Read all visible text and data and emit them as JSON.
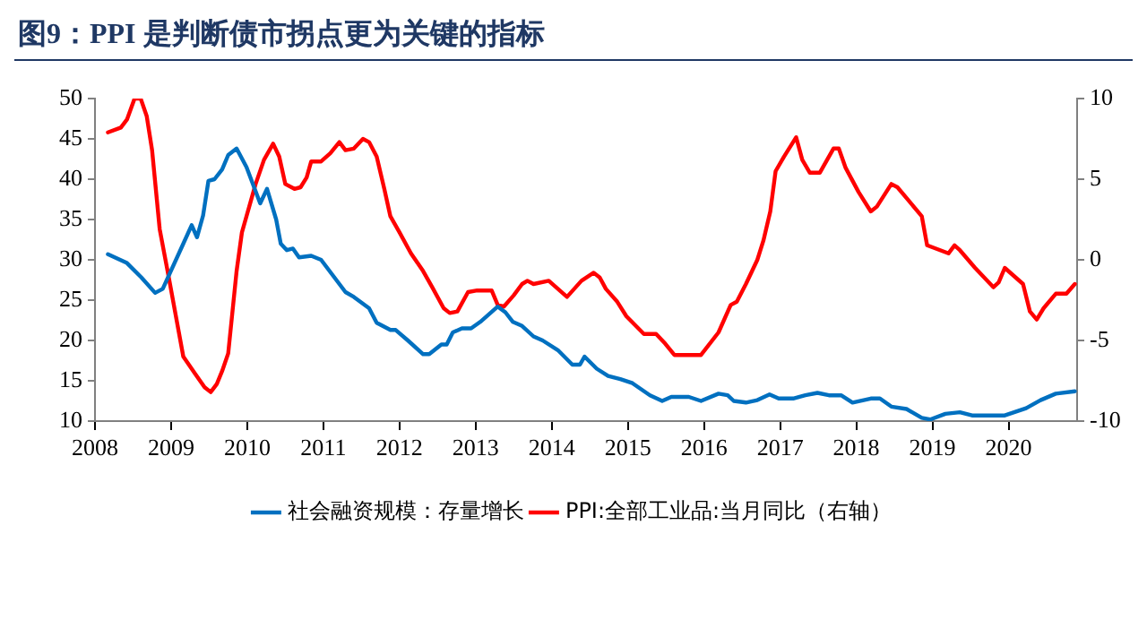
{
  "chart_data": {
    "type": "line",
    "title": "图9：PPI 是判断债市拐点更为关键的指标",
    "xlim": [
      2008,
      2020.9
    ],
    "xticks": [
      2008,
      2009,
      2010,
      2011,
      2012,
      2013,
      2014,
      2015,
      2016,
      2017,
      2018,
      2019,
      2020
    ],
    "ylim": [
      10,
      50
    ],
    "yticks": [
      10,
      15,
      20,
      25,
      30,
      35,
      40,
      45,
      50
    ],
    "y2lim": [
      -10,
      10
    ],
    "y2ticks": [
      -10,
      -5,
      0,
      5,
      10
    ],
    "grid": false,
    "legend": "bottom",
    "marker": "none",
    "line_style": "solid",
    "series": [
      {
        "name": "社会融资规模：存量增长",
        "color": "#0070c0",
        "x": [
          2008.17,
          2008.42,
          2008.61,
          2008.79,
          2008.89,
          2009.16,
          2009.27,
          2009.34,
          2009.42,
          2009.49,
          2009.57,
          2009.67,
          2009.75,
          2009.86,
          2009.99,
          2010.17,
          2010.26,
          2010.38,
          2010.44,
          2010.52,
          2010.6,
          2010.68,
          2010.84,
          2010.97,
          2011.13,
          2011.29,
          2011.4,
          2011.6,
          2011.7,
          2011.88,
          2011.95,
          2012.11,
          2012.31,
          2012.39,
          2012.55,
          2012.62,
          2012.7,
          2012.82,
          2012.94,
          2013.06,
          2013.17,
          2013.29,
          2013.39,
          2013.49,
          2013.61,
          2013.76,
          2013.88,
          2014.08,
          2014.27,
          2014.37,
          2014.43,
          2014.59,
          2014.74,
          2014.9,
          2015.06,
          2015.29,
          2015.45,
          2015.57,
          2015.8,
          2015.96,
          2016.19,
          2016.31,
          2016.39,
          2016.55,
          2016.7,
          2016.86,
          2016.98,
          2017.17,
          2017.33,
          2017.49,
          2017.64,
          2017.8,
          2017.95,
          2018.19,
          2018.31,
          2018.46,
          2018.66,
          2018.86,
          2018.97,
          2019.17,
          2019.36,
          2019.52,
          2019.68,
          2019.95,
          2020.23,
          2020.42,
          2020.62,
          2020.87
        ],
        "values": [
          30.7,
          29.6,
          27.8,
          25.9,
          26.4,
          32,
          34.3,
          32.8,
          35.5,
          39.8,
          40,
          41.2,
          43,
          43.8,
          41.5,
          37,
          38.8,
          35,
          32,
          31.2,
          31.4,
          30.3,
          30.5,
          30,
          28,
          26,
          25.4,
          24,
          22.2,
          21.3,
          21.3,
          20,
          18.3,
          18.3,
          19.5,
          19.5,
          21,
          21.5,
          21.5,
          22.3,
          23.2,
          24.2,
          23.5,
          22.3,
          21.8,
          20.5,
          20,
          18.8,
          17,
          17,
          18,
          16.5,
          15.6,
          15.2,
          14.7,
          13.2,
          12.5,
          13,
          13,
          12.5,
          13.4,
          13.2,
          12.5,
          12.3,
          12.6,
          13.3,
          12.8,
          12.8,
          13.2,
          13.5,
          13.2,
          13.2,
          12.3,
          12.8,
          12.8,
          11.8,
          11.5,
          10.4,
          10.2,
          10.9,
          11.1,
          10.7,
          10.7,
          10.7,
          11.6,
          12.6,
          13.4,
          13.7
        ]
      },
      {
        "name": "PPI:全部工业品:当月同比（右轴）",
        "color": "#ff0000",
        "axis": "y2",
        "x": [
          2008.17,
          2008.34,
          2008.42,
          2008.52,
          2008.6,
          2008.68,
          2008.75,
          2008.85,
          2008.97,
          2009.16,
          2009.32,
          2009.44,
          2009.52,
          2009.6,
          2009.67,
          2009.75,
          2009.86,
          2009.93,
          2010.11,
          2010.22,
          2010.34,
          2010.42,
          2010.5,
          2010.62,
          2010.7,
          2010.78,
          2010.84,
          2010.97,
          2011.09,
          2011.21,
          2011.29,
          2011.4,
          2011.52,
          2011.6,
          2011.7,
          2011.8,
          2011.88,
          2012.0,
          2012.15,
          2012.31,
          2012.43,
          2012.58,
          2012.66,
          2012.76,
          2012.9,
          2013.02,
          2013.21,
          2013.29,
          2013.37,
          2013.5,
          2013.61,
          2013.68,
          2013.76,
          2013.96,
          2014.2,
          2014.39,
          2014.55,
          2014.63,
          2014.71,
          2014.86,
          2014.98,
          2015.21,
          2015.37,
          2015.49,
          2015.61,
          2015.96,
          2016.19,
          2016.35,
          2016.43,
          2016.55,
          2016.7,
          2016.78,
          2016.87,
          2016.94,
          2017.05,
          2017.21,
          2017.29,
          2017.39,
          2017.52,
          2017.7,
          2017.77,
          2017.86,
          2018.03,
          2018.19,
          2018.27,
          2018.46,
          2018.54,
          2018.7,
          2018.86,
          2018.93,
          2019.21,
          2019.29,
          2019.36,
          2019.56,
          2019.8,
          2019.87,
          2019.95,
          2020.19,
          2020.28,
          2020.37,
          2020.46,
          2020.62,
          2020.76,
          2020.87
        ],
        "values": [
          7.9,
          8.2,
          8.7,
          10,
          10,
          8.9,
          6.8,
          1.9,
          -1.1,
          -6,
          -7.1,
          -7.9,
          -8.2,
          -7.7,
          -6.9,
          -5.8,
          -0.7,
          1.7,
          4.7,
          6.2,
          7.2,
          6.4,
          4.7,
          4.4,
          4.5,
          5.1,
          6.1,
          6.1,
          6.6,
          7.3,
          6.8,
          6.9,
          7.5,
          7.3,
          6.4,
          4.4,
          2.7,
          1.7,
          0.4,
          -0.7,
          -1.7,
          -3,
          -3.3,
          -3.2,
          -2,
          -1.9,
          -1.9,
          -2.8,
          -2.9,
          -2.2,
          -1.5,
          -1.3,
          -1.5,
          -1.3,
          -2.3,
          -1.3,
          -0.8,
          -1.1,
          -1.8,
          -2.6,
          -3.5,
          -4.6,
          -4.6,
          -5.2,
          -5.9,
          -5.9,
          -4.5,
          -2.8,
          -2.6,
          -1.5,
          0,
          1.2,
          3,
          5.5,
          6.4,
          7.6,
          6.2,
          5.4,
          5.4,
          6.9,
          6.9,
          5.7,
          4.2,
          3,
          3.3,
          4.7,
          4.5,
          3.6,
          2.7,
          0.9,
          0.4,
          0.9,
          0.6,
          -0.5,
          -1.7,
          -1.4,
          -0.5,
          -1.5,
          -3.2,
          -3.7,
          -3,
          -2.1,
          -2.1,
          -1.5
        ]
      }
    ]
  }
}
